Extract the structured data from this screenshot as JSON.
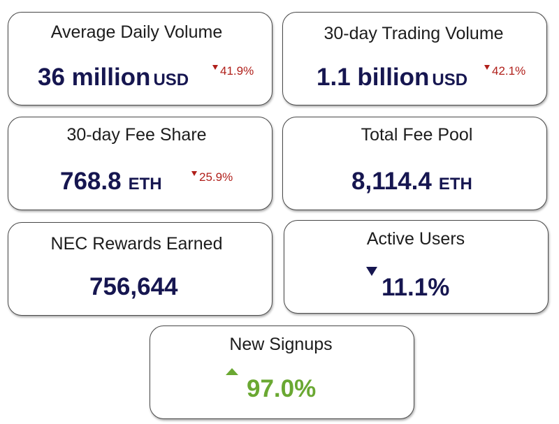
{
  "cards": {
    "avg_daily_volume": {
      "title": "Average Daily Volume",
      "value": "36 million",
      "unit": "USD",
      "delta": "41.9%",
      "delta_direction": "down"
    },
    "trading_volume_30d": {
      "title": "30-day Trading Volume",
      "value": "1.1 billion",
      "unit": "USD",
      "delta": "42.1%",
      "delta_direction": "down"
    },
    "fee_share_30d": {
      "title": "30-day Fee Share",
      "value": "768.8",
      "unit": "ETH",
      "delta": "25.9%",
      "delta_direction": "down"
    },
    "total_fee_pool": {
      "title": "Total Fee Pool",
      "value": "8,114.4",
      "unit": "ETH"
    },
    "nec_rewards": {
      "title": "NEC Rewards Earned",
      "value": "756,644"
    },
    "active_users": {
      "title": "Active Users",
      "value": "11.1%",
      "delta_direction": "down"
    },
    "new_signups": {
      "title": "New Signups",
      "value": "97.0%",
      "delta_direction": "up"
    }
  },
  "colors": {
    "value_text": "#161650",
    "negative": "#b01f1a",
    "positive": "#6aa832",
    "border": "#4a4a4a"
  },
  "icons": {
    "down": "triangle-down-icon",
    "up": "triangle-up-icon"
  }
}
